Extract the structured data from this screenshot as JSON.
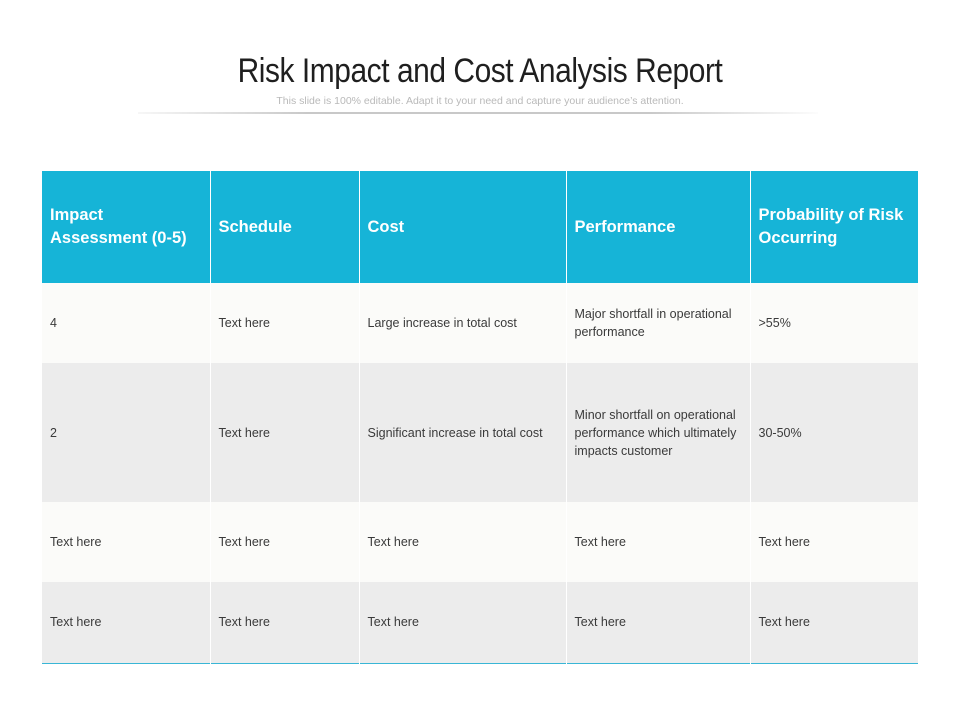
{
  "slide": {
    "title": "Risk Impact and Cost Analysis Report",
    "subtitle": "This slide is 100% editable. Adapt it to your need and capture your audience’s attention."
  },
  "colors": {
    "header_bg": "#16b4d7",
    "header_text": "#ffffff",
    "row_light": "#fbfbf9",
    "row_dark": "#ececec",
    "accent_line": "#39b6d6"
  },
  "table": {
    "headers": [
      "Impact Assessment (0-5)",
      "Schedule",
      "Cost",
      "Performance",
      "Probability of Risk Occurring"
    ],
    "rows": [
      [
        "4",
        "Text here",
        "Large increase in total cost",
        "Major shortfall in operational performance",
        ">55%"
      ],
      [
        "2",
        "Text here",
        "Significant increase in total cost",
        "Minor shortfall on operational performance which ultimately impacts customer",
        "30-50%"
      ],
      [
        "Text here",
        "Text here",
        "Text here",
        "Text here",
        "Text here"
      ],
      [
        "Text here",
        "Text here",
        "Text here",
        "Text here",
        "Text here"
      ]
    ]
  }
}
